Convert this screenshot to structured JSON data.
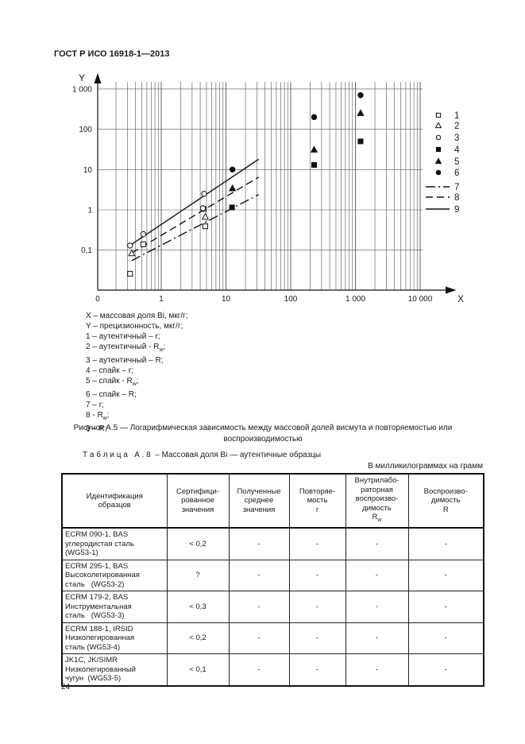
{
  "page": {
    "header": "ГОСТ Р ИСО 16918-1—2013",
    "page_number": "24"
  },
  "figure": {
    "notes": [
      "X – массовая доля Bi, мкг/г;",
      "Y – прецизионность, мкг/г;",
      "1 – аутентичный – r;",
      "2 – аутентичный - R~w~;",
      "3 – аутентичный – R;",
      "4 – спайк – r;",
      "5 – спайк - R~w~;",
      "6 – спайк – R;",
      "7 – r;",
      "8 - R~w~;",
      "9 – R;"
    ],
    "caption": "Рисунок А.5 — Логарифмическая зависимость между массовой долей висмута и повторяемостью или воспроизводимостью"
  },
  "chart_data": {
    "type": "scatter",
    "title": "",
    "xlabel": "X",
    "ylabel": "Y",
    "x_note": "массовая доля Bi, мкг/г",
    "y_note": "прецизионность, мкг/г",
    "x_axis": {
      "scale": "log",
      "tick_values": [
        0,
        1,
        10,
        100,
        1000,
        10000
      ],
      "tick_labels": [
        "0",
        "1",
        "10",
        "100",
        "1 000",
        "10 000"
      ]
    },
    "y_axis": {
      "scale": "log",
      "tick_values": [
        1000,
        100,
        10,
        1,
        0.1
      ],
      "tick_labels": [
        "1 000",
        "100",
        "10",
        "1",
        "0,1"
      ]
    },
    "grid": true,
    "legend_position": "right",
    "series": [
      {
        "id": "1",
        "name": "аутентичный – r",
        "marker": "square-open",
        "points": [
          [
            0.33,
            0.026
          ],
          [
            0.53,
            0.14
          ],
          [
            4.5,
            1.05
          ],
          [
            4.8,
            0.39
          ]
        ]
      },
      {
        "id": "2",
        "name": "аутентичный – Rw",
        "marker": "triangle-open",
        "points": [
          [
            0.35,
            0.083
          ],
          [
            4.8,
            0.67
          ]
        ]
      },
      {
        "id": "3",
        "name": "аутентичный – R",
        "marker": "circle-open",
        "points": [
          [
            0.33,
            0.13
          ],
          [
            0.53,
            0.25
          ],
          [
            4.4,
            1.1
          ],
          [
            4.6,
            2.5
          ]
        ]
      },
      {
        "id": "4",
        "name": "спайк – r",
        "marker": "square-filled",
        "points": [
          [
            12.4,
            1.15
          ],
          [
            230,
            13
          ],
          [
            1200,
            50
          ]
        ]
      },
      {
        "id": "5",
        "name": "спайк – Rw",
        "marker": "triangle-filled",
        "points": [
          [
            12.6,
            3.4
          ],
          [
            230,
            31
          ],
          [
            1200,
            250
          ]
        ]
      },
      {
        "id": "6",
        "name": "спайк – R",
        "marker": "circle-filled",
        "points": [
          [
            12.6,
            10
          ],
          [
            230,
            200
          ],
          [
            1200,
            700
          ]
        ]
      }
    ],
    "lines": [
      {
        "id": "7",
        "name": "r",
        "style": "dashdot",
        "from": [
          0.35,
          0.055
        ],
        "to": [
          32,
          2.4
        ]
      },
      {
        "id": "8",
        "name": "Rw",
        "style": "dashed",
        "from": [
          0.35,
          0.085
        ],
        "to": [
          32,
          6.5
        ]
      },
      {
        "id": "9",
        "name": "R",
        "style": "solid",
        "from": [
          0.35,
          0.14
        ],
        "to": [
          32,
          18
        ]
      }
    ]
  },
  "table": {
    "title": "Т а б л и ц а   А . 8  – Массовая доля Bi — аутентичные образцы",
    "unit_note": "В милликилограммах на грамм",
    "headers": [
      "Идентификация\nобразцов",
      "Сертифици-\nрованное\nзначения",
      "Полученные\nсреднее\nзначения",
      "Повторяе-\nмость\nr",
      "Внутрилабо-\nраторная\nвоспроизво-\nдимость\nR~w~",
      "Воспроизво-\nдимость\nR"
    ],
    "rows": [
      {
        "name": "ECRM 090-1, BAS\nуглеродистая сталь\n(WG53-1)",
        "values": [
          "< 0,2",
          "-",
          "-",
          "-",
          "-"
        ]
      },
      {
        "name": "ECRM 295-1, BAS\nВысоколегированная\nсталь   (WG53-2)",
        "values": [
          "?",
          "-",
          "-",
          "-",
          "-"
        ]
      },
      {
        "name": "ECRM 179-2, BAS\nИнструментальная\nсталь   (WG53-3)",
        "values": [
          "< 0,3",
          "-",
          "-",
          "-",
          "-"
        ]
      },
      {
        "name": "ECRM 188-1, IRSID\nНизколегированная\nсталь (WG53-4)",
        "values": [
          "< 0,2",
          "-",
          "-",
          "-",
          "-"
        ]
      },
      {
        "name": "JK1C, JK/SIMR\nНизколегированный\nчугун  (WG53-5)",
        "values": [
          "< 0,1",
          "-",
          "-",
          "-",
          "-"
        ]
      }
    ]
  }
}
